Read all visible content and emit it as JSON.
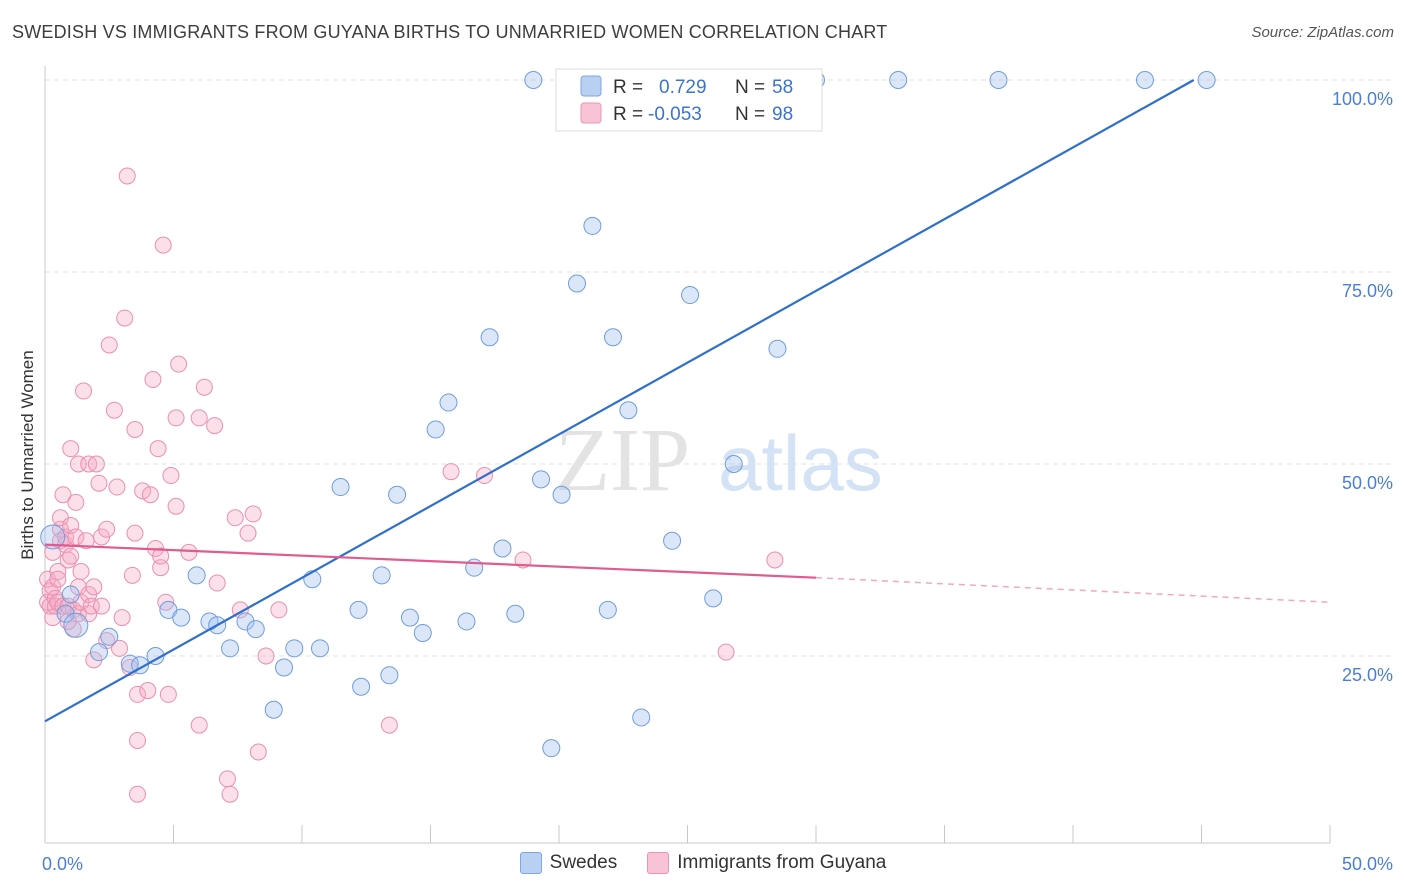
{
  "title": "SWEDISH VS IMMIGRANTS FROM GUYANA BIRTHS TO UNMARRIED WOMEN CORRELATION CHART",
  "source": "Source: ZipAtlas.com",
  "watermark": {
    "zip": "ZIP",
    "atlas": "atlas"
  },
  "colors": {
    "swedes": "#5d8fd8",
    "guyana": "#e87aa0",
    "swedes_line": "#2f6fcc",
    "guyana_line": "#e05c8e",
    "tick_text": "#4a7fd4"
  },
  "legend": {
    "rows": [
      {
        "r_label": "R =",
        "r_value": "0.729",
        "n_label": "N =",
        "n_value": "58"
      },
      {
        "r_label": "R =",
        "r_value": "-0.053",
        "n_label": "N =",
        "n_value": "98"
      }
    ]
  },
  "chart_data": {
    "type": "scatter",
    "title": "SWEDISH VS IMMIGRANTS FROM GUYANA BIRTHS TO UNMARRIED WOMEN CORRELATION CHART",
    "xlabel": "",
    "ylabel": "Births to Unmarried Women",
    "xlim": [
      0,
      50
    ],
    "ylim": [
      0,
      100
    ],
    "x_tick_labels": [
      "0.0%",
      "50.0%"
    ],
    "y_tick_labels": [
      "25.0%",
      "50.0%",
      "75.0%",
      "100.0%"
    ],
    "y_ticks": [
      25,
      50,
      75,
      100
    ],
    "grid": true,
    "legend_position": "top-center",
    "series": [
      {
        "name": "Swedes",
        "r": 0.729,
        "n": 58,
        "trend": {
          "x": [
            0,
            44.7
          ],
          "y": [
            16.5,
            100
          ]
        },
        "points": [
          [
            0.3,
            40.5
          ],
          [
            0.8,
            30.5
          ],
          [
            1.0,
            33.0
          ],
          [
            1.2,
            29.0
          ],
          [
            2.1,
            25.5
          ],
          [
            2.5,
            27.5
          ],
          [
            3.3,
            24.0
          ],
          [
            3.7,
            23.8
          ],
          [
            4.3,
            25.0
          ],
          [
            4.8,
            31.0
          ],
          [
            5.3,
            30.0
          ],
          [
            5.9,
            35.5
          ],
          [
            6.4,
            29.5
          ],
          [
            6.7,
            29.0
          ],
          [
            7.2,
            26.0
          ],
          [
            7.8,
            29.5
          ],
          [
            8.2,
            28.5
          ],
          [
            8.9,
            18.0
          ],
          [
            9.3,
            23.5
          ],
          [
            9.7,
            26.0
          ],
          [
            10.4,
            35.0
          ],
          [
            10.7,
            26.0
          ],
          [
            11.5,
            47.0
          ],
          [
            12.2,
            31.0
          ],
          [
            12.3,
            21.0
          ],
          [
            13.1,
            35.5
          ],
          [
            13.4,
            22.5
          ],
          [
            13.7,
            46.0
          ],
          [
            14.2,
            30.0
          ],
          [
            14.7,
            28.0
          ],
          [
            15.2,
            54.5
          ],
          [
            15.7,
            58.0
          ],
          [
            16.4,
            29.5
          ],
          [
            16.7,
            36.5
          ],
          [
            17.3,
            66.5
          ],
          [
            17.8,
            39.0
          ],
          [
            18.3,
            30.5
          ],
          [
            19.0,
            100.0
          ],
          [
            19.3,
            48.0
          ],
          [
            19.7,
            13.0
          ],
          [
            20.1,
            46.0
          ],
          [
            20.7,
            73.5
          ],
          [
            21.3,
            81.0
          ],
          [
            21.9,
            31.0
          ],
          [
            22.1,
            66.5
          ],
          [
            22.7,
            57.0
          ],
          [
            23.2,
            17.0
          ],
          [
            24.4,
            40.0
          ],
          [
            25.1,
            72.0
          ],
          [
            26.0,
            32.5
          ],
          [
            26.8,
            50.0
          ],
          [
            28.0,
            100.0
          ],
          [
            28.5,
            65.0
          ],
          [
            30.0,
            100.0
          ],
          [
            33.2,
            100.0
          ],
          [
            37.1,
            100.0
          ],
          [
            42.8,
            100.0
          ],
          [
            45.2,
            100.0
          ]
        ]
      },
      {
        "name": "Immigrants from Guyana",
        "r": -0.053,
        "n": 98,
        "trend": {
          "x": [
            0,
            30
          ],
          "y": [
            39.5,
            35.2
          ]
        },
        "trend_dashed": {
          "x": [
            30,
            50
          ],
          "y": [
            35.2,
            32.0
          ]
        },
        "points": [
          [
            0.1,
            35.0
          ],
          [
            0.1,
            32.0
          ],
          [
            0.2,
            31.5
          ],
          [
            0.2,
            33.5
          ],
          [
            0.3,
            30.0
          ],
          [
            0.3,
            34.0
          ],
          [
            0.3,
            38.5
          ],
          [
            0.4,
            32.5
          ],
          [
            0.4,
            31.5
          ],
          [
            0.5,
            36.0
          ],
          [
            0.5,
            35.0
          ],
          [
            0.5,
            32.0
          ],
          [
            0.6,
            41.5
          ],
          [
            0.6,
            40.0
          ],
          [
            0.6,
            43.0
          ],
          [
            0.7,
            31.5
          ],
          [
            0.7,
            46.0
          ],
          [
            0.8,
            39.5
          ],
          [
            0.8,
            40.5
          ],
          [
            0.9,
            37.5
          ],
          [
            0.9,
            31.5
          ],
          [
            1.0,
            42.0
          ],
          [
            1.0,
            38.0
          ],
          [
            1.0,
            52.0
          ],
          [
            1.1,
            31.0
          ],
          [
            1.2,
            40.5
          ],
          [
            1.2,
            45.0
          ],
          [
            1.3,
            30.5
          ],
          [
            1.3,
            34.0
          ],
          [
            1.3,
            50.0
          ],
          [
            1.4,
            32.0
          ],
          [
            1.4,
            36.0
          ],
          [
            1.5,
            59.5
          ],
          [
            1.6,
            40.0
          ],
          [
            1.7,
            50.0
          ],
          [
            1.7,
            30.5
          ],
          [
            1.7,
            33.0
          ],
          [
            1.8,
            31.5
          ],
          [
            1.9,
            24.5
          ],
          [
            1.9,
            34.0
          ],
          [
            2.0,
            50.0
          ],
          [
            2.1,
            47.5
          ],
          [
            2.2,
            40.5
          ],
          [
            2.4,
            41.5
          ],
          [
            2.4,
            27.0
          ],
          [
            2.5,
            65.5
          ],
          [
            2.7,
            57.0
          ],
          [
            2.8,
            47.0
          ],
          [
            2.9,
            26.0
          ],
          [
            3.0,
            30.0
          ],
          [
            3.1,
            69.0
          ],
          [
            3.2,
            87.5
          ],
          [
            3.3,
            23.5
          ],
          [
            3.4,
            35.5
          ],
          [
            3.5,
            41.0
          ],
          [
            3.5,
            54.5
          ],
          [
            3.6,
            20.0
          ],
          [
            3.6,
            14.0
          ],
          [
            3.6,
            7.0
          ],
          [
            3.8,
            46.5
          ],
          [
            4.0,
            20.5
          ],
          [
            4.1,
            46.0
          ],
          [
            4.2,
            61.0
          ],
          [
            4.3,
            39.0
          ],
          [
            4.4,
            52.0
          ],
          [
            4.5,
            36.5
          ],
          [
            4.5,
            38.0
          ],
          [
            4.6,
            78.5
          ],
          [
            4.7,
            32.0
          ],
          [
            4.8,
            20.0
          ],
          [
            4.9,
            48.5
          ],
          [
            5.1,
            56.0
          ],
          [
            5.1,
            44.5
          ],
          [
            5.2,
            63.0
          ],
          [
            5.6,
            38.5
          ],
          [
            6.0,
            16.0
          ],
          [
            6.0,
            56.0
          ],
          [
            6.2,
            60.0
          ],
          [
            6.6,
            55.0
          ],
          [
            6.7,
            34.5
          ],
          [
            7.1,
            9.0
          ],
          [
            7.2,
            7.0
          ],
          [
            7.4,
            43.0
          ],
          [
            7.6,
            31.0
          ],
          [
            7.9,
            41.0
          ],
          [
            8.1,
            43.5
          ],
          [
            8.3,
            12.5
          ],
          [
            8.6,
            25.0
          ],
          [
            9.1,
            31.0
          ],
          [
            13.4,
            16.0
          ],
          [
            15.8,
            49.0
          ],
          [
            17.1,
            48.5
          ],
          [
            18.6,
            37.5
          ],
          [
            26.5,
            25.5
          ],
          [
            28.4,
            37.5
          ],
          [
            2.2,
            31.5
          ],
          [
            1.1,
            28.5
          ],
          [
            0.9,
            29.5
          ]
        ]
      }
    ]
  },
  "bottom_legend": [
    {
      "label": "Swedes"
    },
    {
      "label": "Immigrants from Guyana"
    }
  ]
}
